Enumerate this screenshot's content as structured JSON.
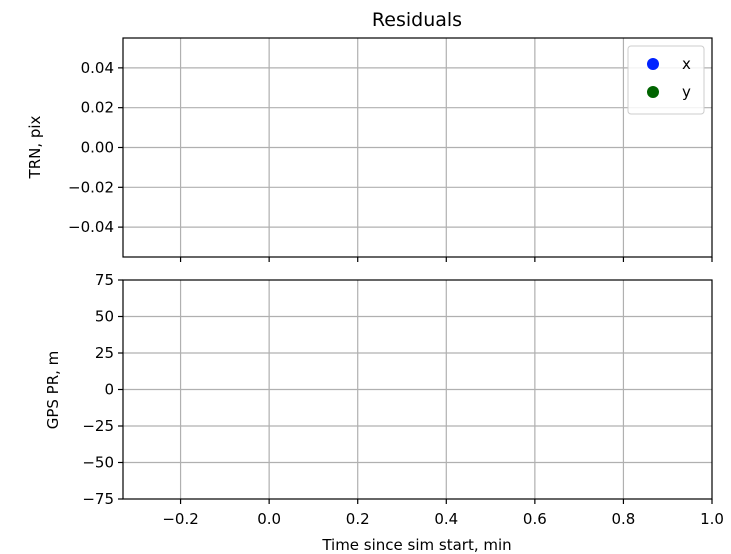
{
  "chart_data": {
    "type": "scatter",
    "title": "Residuals",
    "xlabel": "Time since sim start, min",
    "xlim": [
      -0.33,
      1.0
    ],
    "x_ticks": [
      -0.2,
      0.0,
      0.2,
      0.4,
      0.6,
      0.8,
      1.0
    ],
    "x_tick_labels": [
      "−0.2",
      "0.0",
      "0.2",
      "0.4",
      "0.6",
      "0.8",
      "1.0"
    ],
    "grid": true,
    "subplots": [
      {
        "ylabel": "TRN, pix",
        "ylim": [
          -0.055,
          0.055
        ],
        "y_ticks": [
          0.04,
          0.02,
          0.0,
          -0.02,
          -0.04
        ],
        "y_tick_labels": [
          "0.04",
          "0.02",
          "0.00",
          "−0.02",
          "−0.04"
        ],
        "show_x_tick_labels": false,
        "legend": {
          "placement": "top-right",
          "entries": [
            {
              "label": "x",
              "color": "#0022ff"
            },
            {
              "label": "y",
              "color": "#006400"
            }
          ]
        },
        "series": [
          {
            "name": "x",
            "color": "#0022ff",
            "x": [],
            "y": []
          },
          {
            "name": "y",
            "color": "#006400",
            "x": [],
            "y": []
          }
        ]
      },
      {
        "ylabel": "GPS PR, m",
        "ylim": [
          -75,
          75
        ],
        "y_ticks": [
          75,
          50,
          25,
          0,
          -25,
          -50,
          -75
        ],
        "y_tick_labels": [
          "75",
          "50",
          "25",
          "0",
          "−25",
          "−50",
          "−75"
        ],
        "show_x_tick_labels": true,
        "series": []
      }
    ]
  }
}
